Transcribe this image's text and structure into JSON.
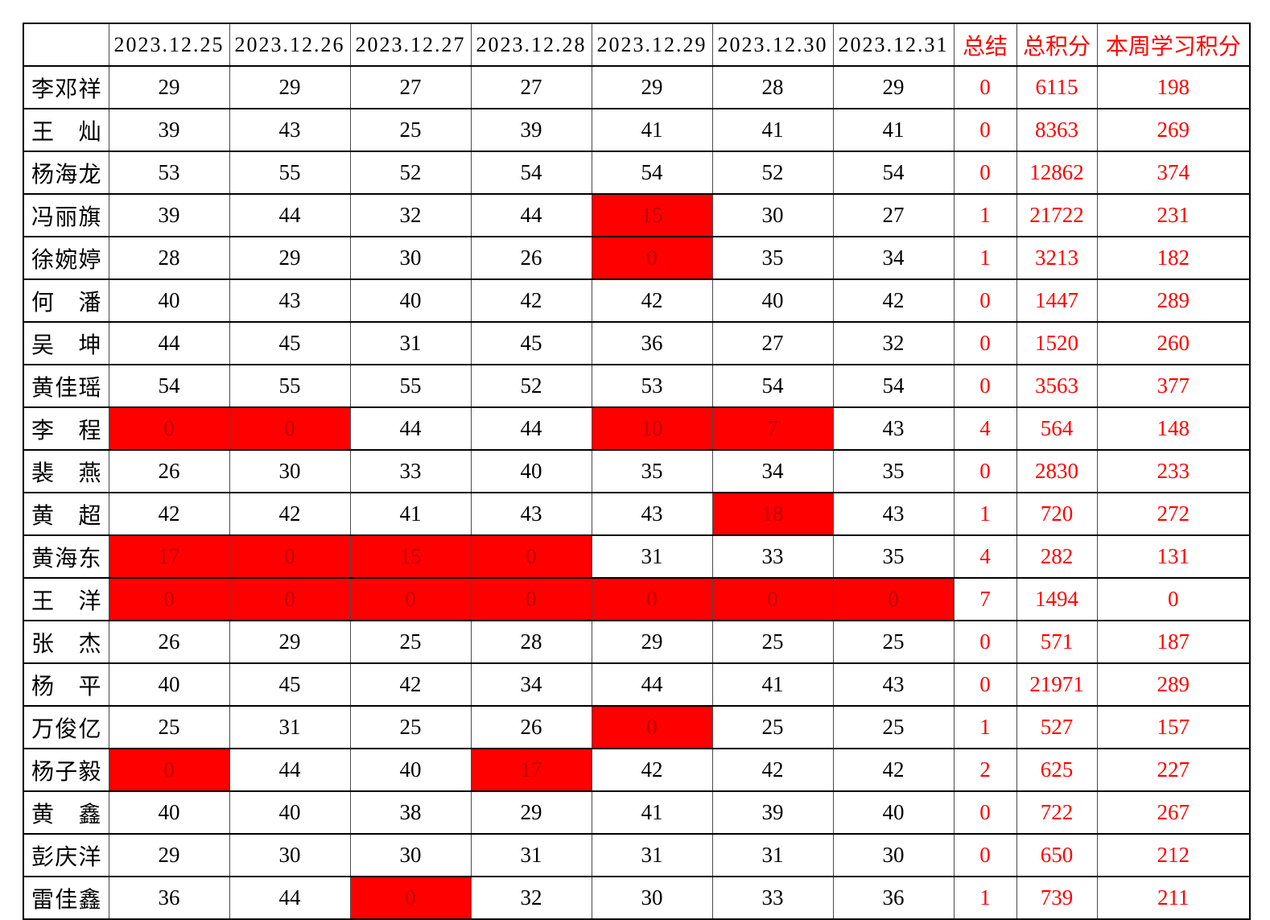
{
  "colors": {
    "accent_red": "#FF0000",
    "alert_cell_background": "#FF0000",
    "alert_cell_text": "#C00000",
    "grid_line": "#000000"
  },
  "table": {
    "corner_label": "",
    "date_columns": [
      "2023.12.25",
      "2023.12.26",
      "2023.12.27",
      "2023.12.28",
      "2023.12.29",
      "2023.12.30",
      "2023.12.31"
    ],
    "summary_columns": [
      "总结",
      "总积分",
      "本周学习积分"
    ],
    "rows": [
      {
        "name": "李邓祥",
        "scores": [
          29,
          29,
          27,
          27,
          29,
          28,
          29
        ],
        "red": [
          0,
          0,
          0,
          0,
          0,
          0,
          0
        ],
        "summary": 0,
        "total": 6115,
        "week": 198
      },
      {
        "name": "王灿",
        "scores": [
          39,
          43,
          25,
          39,
          41,
          41,
          41
        ],
        "red": [
          0,
          0,
          0,
          0,
          0,
          0,
          0
        ],
        "summary": 0,
        "total": 8363,
        "week": 269
      },
      {
        "name": "杨海龙",
        "scores": [
          53,
          55,
          52,
          54,
          54,
          52,
          54
        ],
        "red": [
          0,
          0,
          0,
          0,
          0,
          0,
          0
        ],
        "summary": 0,
        "total": 12862,
        "week": 374
      },
      {
        "name": "冯丽旗",
        "scores": [
          39,
          44,
          32,
          44,
          15,
          30,
          27
        ],
        "red": [
          0,
          0,
          0,
          0,
          1,
          0,
          0
        ],
        "summary": 1,
        "total": 21722,
        "week": 231
      },
      {
        "name": "徐婉婷",
        "scores": [
          28,
          29,
          30,
          26,
          0,
          35,
          34
        ],
        "red": [
          0,
          0,
          0,
          0,
          1,
          0,
          0
        ],
        "summary": 1,
        "total": 3213,
        "week": 182
      },
      {
        "name": "何潘",
        "scores": [
          40,
          43,
          40,
          42,
          42,
          40,
          42
        ],
        "red": [
          0,
          0,
          0,
          0,
          0,
          0,
          0
        ],
        "summary": 0,
        "total": 1447,
        "week": 289
      },
      {
        "name": "吴坤",
        "scores": [
          44,
          45,
          31,
          45,
          36,
          27,
          32
        ],
        "red": [
          0,
          0,
          0,
          0,
          0,
          0,
          0
        ],
        "summary": 0,
        "total": 1520,
        "week": 260
      },
      {
        "name": "黄佳瑶",
        "scores": [
          54,
          55,
          55,
          52,
          53,
          54,
          54
        ],
        "red": [
          0,
          0,
          0,
          0,
          0,
          0,
          0
        ],
        "summary": 0,
        "total": 3563,
        "week": 377
      },
      {
        "name": "李程",
        "scores": [
          0,
          0,
          44,
          44,
          10,
          7,
          43
        ],
        "red": [
          1,
          1,
          0,
          0,
          1,
          1,
          0
        ],
        "summary": 4,
        "total": 564,
        "week": 148
      },
      {
        "name": "裴燕",
        "scores": [
          26,
          30,
          33,
          40,
          35,
          34,
          35
        ],
        "red": [
          0,
          0,
          0,
          0,
          0,
          0,
          0
        ],
        "summary": 0,
        "total": 2830,
        "week": 233
      },
      {
        "name": "黄超",
        "scores": [
          42,
          42,
          41,
          43,
          43,
          18,
          43
        ],
        "red": [
          0,
          0,
          0,
          0,
          0,
          1,
          0
        ],
        "summary": 1,
        "total": 720,
        "week": 272
      },
      {
        "name": "黄海东",
        "scores": [
          17,
          0,
          15,
          0,
          31,
          33,
          35
        ],
        "red": [
          1,
          1,
          1,
          1,
          0,
          0,
          0
        ],
        "summary": 4,
        "total": 282,
        "week": 131
      },
      {
        "name": "王洋",
        "scores": [
          0,
          0,
          0,
          0,
          0,
          0,
          0
        ],
        "red": [
          1,
          1,
          1,
          1,
          1,
          1,
          1
        ],
        "summary": 7,
        "total": 1494,
        "week": 0
      },
      {
        "name": "张杰",
        "scores": [
          26,
          29,
          25,
          28,
          29,
          25,
          25
        ],
        "red": [
          0,
          0,
          0,
          0,
          0,
          0,
          0
        ],
        "summary": 0,
        "total": 571,
        "week": 187
      },
      {
        "name": "杨平",
        "scores": [
          40,
          45,
          42,
          34,
          44,
          41,
          43
        ],
        "red": [
          0,
          0,
          0,
          0,
          0,
          0,
          0
        ],
        "summary": 0,
        "total": 21971,
        "week": 289
      },
      {
        "name": "万俊亿",
        "scores": [
          25,
          31,
          25,
          26,
          0,
          25,
          25
        ],
        "red": [
          0,
          0,
          0,
          0,
          1,
          0,
          0
        ],
        "summary": 1,
        "total": 527,
        "week": 157
      },
      {
        "name": "杨子毅",
        "scores": [
          0,
          44,
          40,
          17,
          42,
          42,
          42
        ],
        "red": [
          1,
          0,
          0,
          1,
          0,
          0,
          0
        ],
        "summary": 2,
        "total": 625,
        "week": 227
      },
      {
        "name": "黄鑫",
        "scores": [
          40,
          40,
          38,
          29,
          41,
          39,
          40
        ],
        "red": [
          0,
          0,
          0,
          0,
          0,
          0,
          0
        ],
        "summary": 0,
        "total": 722,
        "week": 267
      },
      {
        "name": "彭庆洋",
        "scores": [
          29,
          30,
          30,
          31,
          31,
          31,
          30
        ],
        "red": [
          0,
          0,
          0,
          0,
          0,
          0,
          0
        ],
        "summary": 0,
        "total": 650,
        "week": 212
      },
      {
        "name": "雷佳鑫",
        "scores": [
          36,
          44,
          0,
          32,
          30,
          33,
          36
        ],
        "red": [
          0,
          0,
          1,
          0,
          0,
          0,
          0
        ],
        "summary": 1,
        "total": 739,
        "week": 211
      }
    ]
  }
}
